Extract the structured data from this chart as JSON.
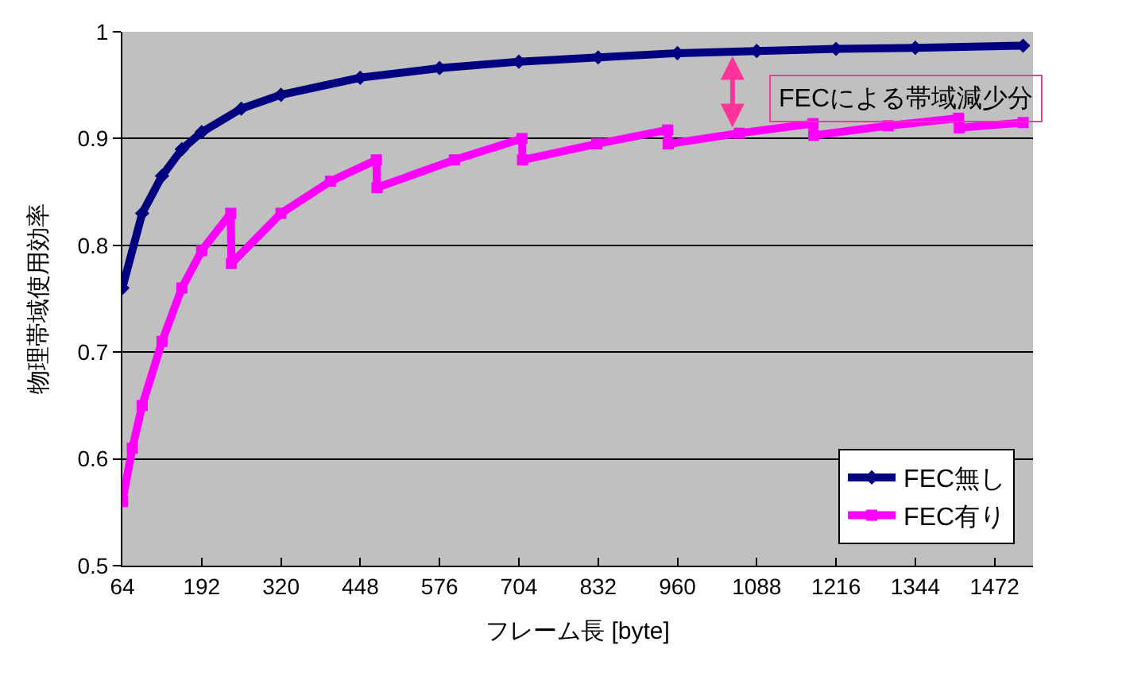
{
  "chart_data": {
    "type": "line",
    "xlabel": "フレーム長 [byte]",
    "ylabel": "物理帯域使用効率",
    "xlim": [
      64,
      1534
    ],
    "xticks": [
      64,
      192,
      320,
      448,
      576,
      704,
      832,
      960,
      1088,
      1216,
      1344,
      1472
    ],
    "ylim": [
      0.5,
      1
    ],
    "yticks": [
      0.5,
      0.6,
      0.7,
      0.8,
      0.9,
      1
    ],
    "grid": "y",
    "legend": "bottom right",
    "series": [
      {
        "name": "FEC無し",
        "color": "#000080",
        "marker": "diamond",
        "x": [
          64,
          96,
          128,
          160,
          192,
          256,
          320,
          448,
          576,
          704,
          832,
          960,
          1088,
          1216,
          1344,
          1518
        ],
        "values": [
          0.76,
          0.83,
          0.865,
          0.89,
          0.906,
          0.928,
          0.941,
          0.957,
          0.966,
          0.972,
          0.976,
          0.98,
          0.982,
          0.984,
          0.985,
          0.987
        ]
      },
      {
        "name": "FEC有り",
        "color": "#ff00ff",
        "marker": "square",
        "x": [
          64,
          80,
          96,
          128,
          160,
          192,
          239,
          240,
          320,
          400,
          474,
          475,
          600,
          709,
          710,
          830,
          944,
          945,
          1060,
          1179,
          1180,
          1300,
          1414,
          1415,
          1518
        ],
        "values": [
          0.56,
          0.61,
          0.65,
          0.71,
          0.76,
          0.795,
          0.83,
          0.783,
          0.83,
          0.86,
          0.88,
          0.854,
          0.88,
          0.9,
          0.88,
          0.895,
          0.908,
          0.895,
          0.905,
          0.914,
          0.903,
          0.912,
          0.919,
          0.91,
          0.915
        ]
      }
    ],
    "annotations": [
      "FECによる帯域減少分"
    ]
  }
}
